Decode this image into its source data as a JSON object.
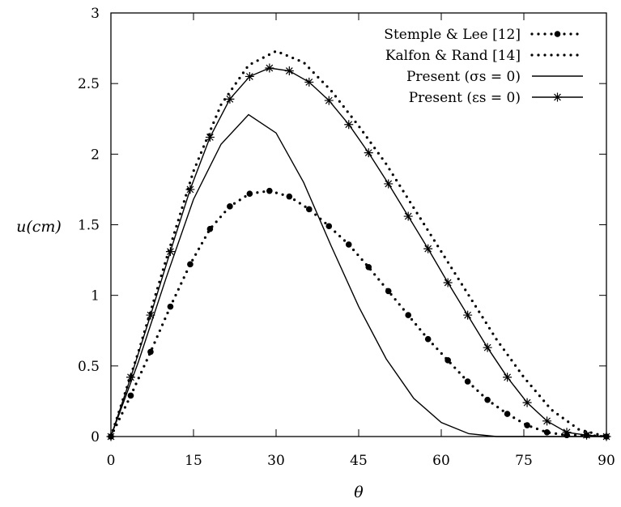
{
  "chart_data": {
    "type": "line",
    "xlabel": "θ",
    "ylabel": "u(cm)",
    "xlim": [
      0,
      90
    ],
    "ylim": [
      0,
      3
    ],
    "xticks": [
      "0",
      "15",
      "30",
      "45",
      "60",
      "75",
      "90"
    ],
    "yticks": [
      "0",
      "0.5",
      "1",
      "1.5",
      "2",
      "2.5",
      "3"
    ],
    "grid": false,
    "legend_position": "top-right",
    "series": [
      {
        "name": "Stemple & Lee [12]",
        "style": "dotted-circles",
        "color": "#000000",
        "x": [
          0,
          3.6,
          7.2,
          10.8,
          14.4,
          18,
          21.6,
          25.2,
          28.8,
          32.4,
          36,
          39.6,
          43.2,
          46.8,
          50.4,
          54,
          57.6,
          61.2,
          64.8,
          68.4,
          72,
          75.6,
          79.2,
          82.8,
          86.4,
          90
        ],
        "y": [
          0,
          0.29,
          0.6,
          0.92,
          1.22,
          1.47,
          1.63,
          1.72,
          1.74,
          1.7,
          1.61,
          1.49,
          1.36,
          1.2,
          1.03,
          0.86,
          0.69,
          0.54,
          0.39,
          0.26,
          0.16,
          0.08,
          0.03,
          0.01,
          0.01,
          0
        ]
      },
      {
        "name": "Kalfon & Rand [14]",
        "style": "dotted",
        "color": "#000000",
        "x": [
          0,
          5,
          10,
          15,
          20,
          25,
          30,
          35,
          40,
          45,
          50,
          55,
          60,
          65,
          70,
          75,
          80,
          85,
          90
        ],
        "y": [
          0,
          0.6,
          1.25,
          1.88,
          2.35,
          2.63,
          2.73,
          2.65,
          2.45,
          2.2,
          1.93,
          1.62,
          1.31,
          1.0,
          0.69,
          0.42,
          0.19,
          0.05,
          0
        ]
      },
      {
        "name": "Present (σs = 0)",
        "style": "solid",
        "color": "#000000",
        "x": [
          0,
          5,
          10,
          15,
          20,
          25,
          30,
          35,
          40,
          45,
          50,
          55,
          60,
          65,
          70,
          75,
          80,
          85,
          90
        ],
        "y": [
          0,
          0.53,
          1.12,
          1.68,
          2.07,
          2.28,
          2.15,
          1.8,
          1.35,
          0.92,
          0.55,
          0.27,
          0.1,
          0.02,
          0,
          0,
          0,
          0,
          0
        ]
      },
      {
        "name": "Present (εs = 0)",
        "style": "line-stars",
        "color": "#000000",
        "x": [
          0,
          3.6,
          7.2,
          10.8,
          14.4,
          18,
          21.6,
          25.2,
          28.8,
          32.4,
          36,
          39.6,
          43.2,
          46.8,
          50.4,
          54,
          57.6,
          61.2,
          64.8,
          68.4,
          72,
          75.6,
          79.2,
          82.8,
          86.4,
          90
        ],
        "y": [
          0,
          0.42,
          0.86,
          1.31,
          1.75,
          2.12,
          2.39,
          2.55,
          2.61,
          2.59,
          2.51,
          2.38,
          2.21,
          2.01,
          1.79,
          1.56,
          1.33,
          1.09,
          0.86,
          0.63,
          0.42,
          0.24,
          0.11,
          0.03,
          0.01,
          0
        ]
      }
    ]
  }
}
